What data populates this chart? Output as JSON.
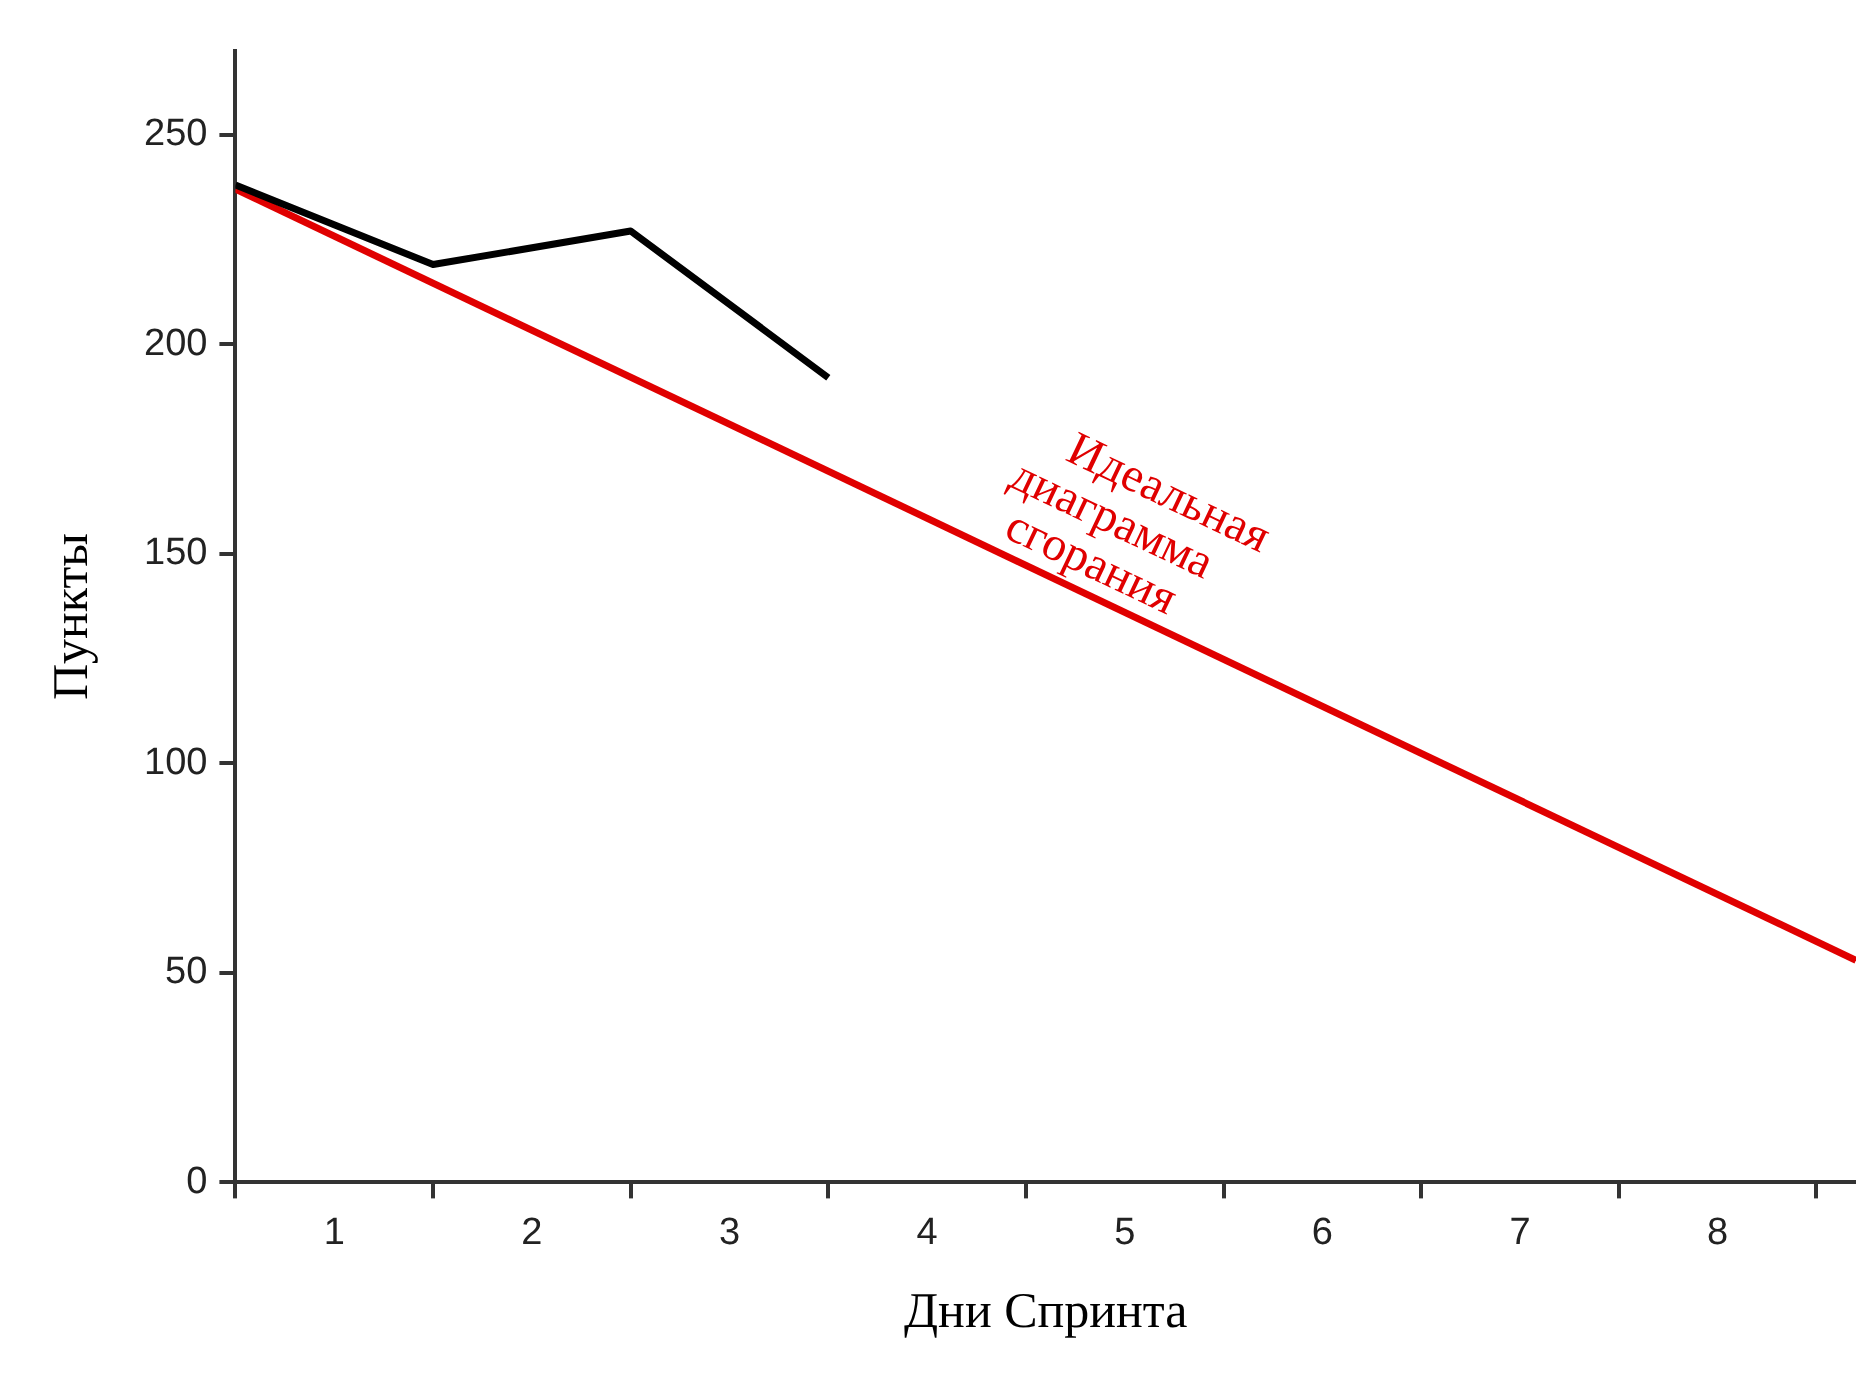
{
  "chart_data": {
    "type": "line",
    "xlabel": "Дни Спринта",
    "ylabel": "Пункты",
    "xlim": [
      0,
      8.2
    ],
    "ylim": [
      0,
      270
    ],
    "xticks": [
      {
        "value": 0,
        "label": null
      },
      {
        "value": 0.5,
        "label": "1"
      },
      {
        "value": 1,
        "label": null
      },
      {
        "value": 1.5,
        "label": "2"
      },
      {
        "value": 2,
        "label": null
      },
      {
        "value": 2.5,
        "label": "3"
      },
      {
        "value": 3,
        "label": null
      },
      {
        "value": 3.5,
        "label": "4"
      },
      {
        "value": 4,
        "label": null
      },
      {
        "value": 4.5,
        "label": "5"
      },
      {
        "value": 5,
        "label": null
      },
      {
        "value": 5.5,
        "label": "6"
      },
      {
        "value": 6,
        "label": null
      },
      {
        "value": 6.5,
        "label": "7"
      },
      {
        "value": 7,
        "label": null
      },
      {
        "value": 7.5,
        "label": "8"
      },
      {
        "value": 8,
        "label": null
      }
    ],
    "yticks": [
      0,
      50,
      100,
      150,
      200,
      250
    ],
    "series": [
      {
        "color": "#000000",
        "x": [
          0,
          1,
          2,
          3
        ],
        "values": [
          238,
          219,
          227,
          192
        ]
      },
      {
        "name": "Идеальная диаграмма сгорания",
        "color": "#e00000",
        "x": [
          0,
          8.2
        ],
        "values": [
          237,
          53
        ]
      }
    ],
    "grid": false,
    "legend": false,
    "marker": "none",
    "line_style": "solid"
  }
}
